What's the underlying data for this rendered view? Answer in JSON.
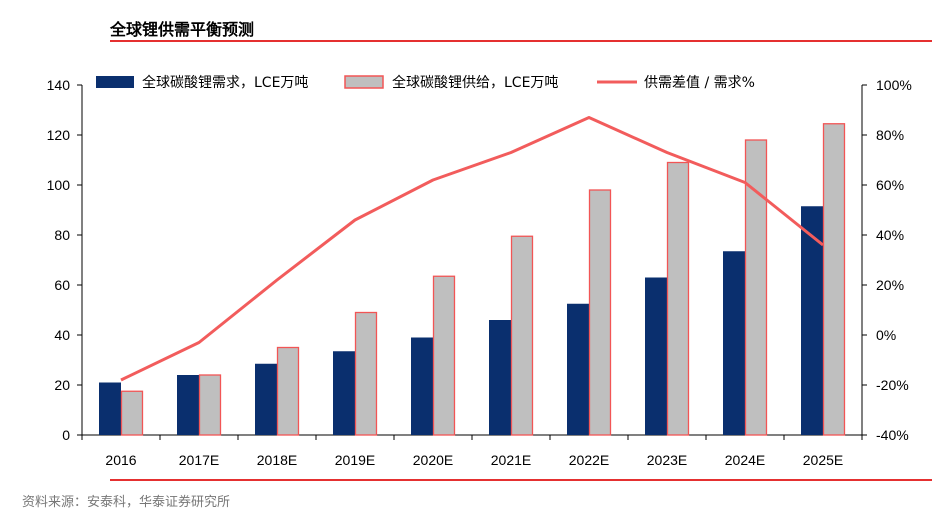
{
  "header": {
    "title": "全球锂供需平衡预测"
  },
  "footer": {
    "source": "资料来源：安泰科，华泰证券研究所"
  },
  "colors": {
    "demand": "#0a2f6e",
    "supply_fill": "#bfbfbf",
    "supply_stroke": "#f25555",
    "line": "#f25c5c",
    "rule": "#e53030"
  },
  "chart_data": {
    "type": "bar",
    "categories": [
      "2016",
      "2017E",
      "2018E",
      "2019E",
      "2020E",
      "2021E",
      "2022E",
      "2023E",
      "2024E",
      "2025E"
    ],
    "series": [
      {
        "name": "全球碳酸锂需求，LCE万吨",
        "type": "bar",
        "axis": "left",
        "values": [
          21,
          24,
          28.5,
          33.5,
          39,
          46,
          52.5,
          63,
          73.5,
          91.5
        ]
      },
      {
        "name": "全球碳酸锂供给，LCE万吨",
        "type": "bar",
        "axis": "left",
        "values": [
          17.5,
          24,
          35,
          49,
          63.5,
          79.5,
          98,
          109,
          118,
          124.5
        ]
      },
      {
        "name": "供需差值 / 需求%",
        "type": "line",
        "axis": "right",
        "values": [
          -18,
          -3,
          22,
          46,
          62,
          73,
          87,
          73,
          61,
          36
        ]
      }
    ],
    "ylim_left": [
      0,
      140
    ],
    "yticks_left": [
      "0",
      "20",
      "40",
      "60",
      "80",
      "100",
      "120",
      "140"
    ],
    "ylim_right": [
      -40,
      100
    ],
    "yticks_right": [
      "-40%",
      "-20%",
      "0%",
      "20%",
      "40%",
      "60%",
      "80%",
      "100%"
    ],
    "legend_position": "top",
    "grid": false
  }
}
